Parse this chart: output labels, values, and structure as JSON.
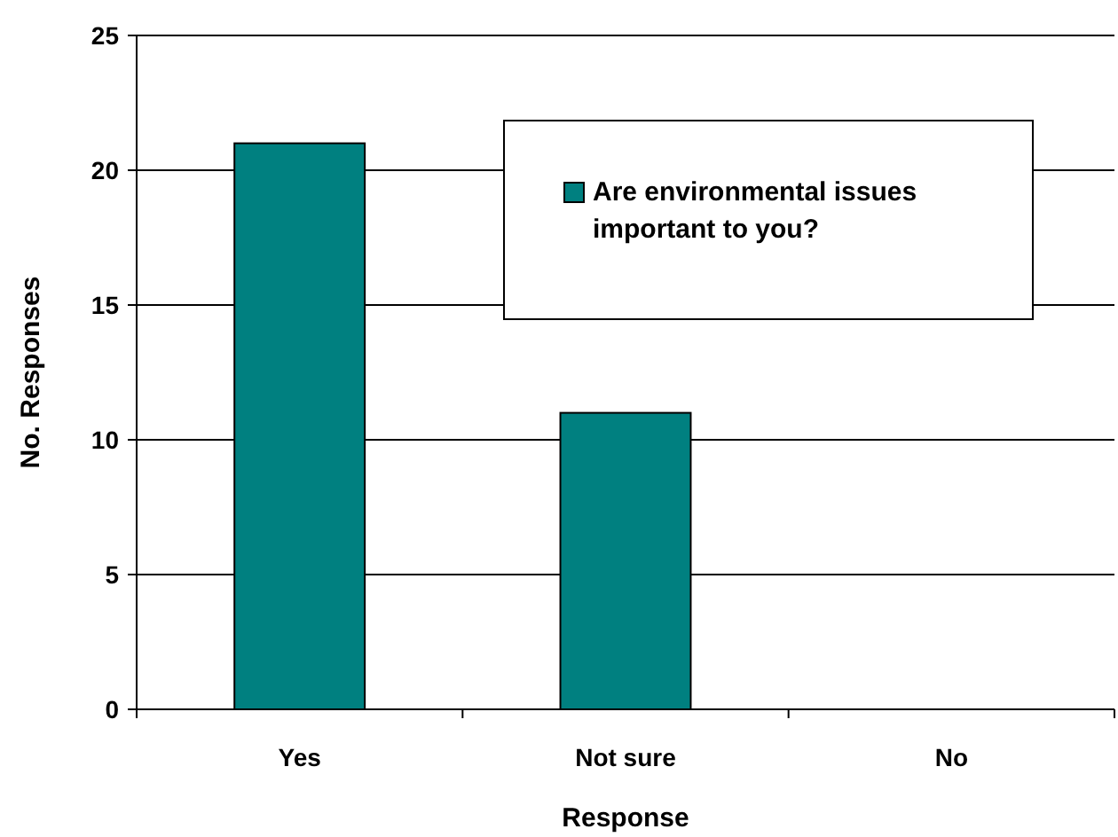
{
  "chart_data": {
    "type": "bar",
    "xlabel": "Response",
    "ylabel": "No. Responses",
    "categories": [
      "Yes",
      "Not sure",
      "No"
    ],
    "series": [
      {
        "name": "Are environmental issues important to you?",
        "color": "#008080",
        "values": [
          21,
          11,
          0
        ]
      }
    ],
    "ylim": [
      0,
      25
    ],
    "yticks": [
      0,
      5,
      10,
      15,
      20,
      25
    ],
    "grid": "y",
    "legend": "top right"
  }
}
